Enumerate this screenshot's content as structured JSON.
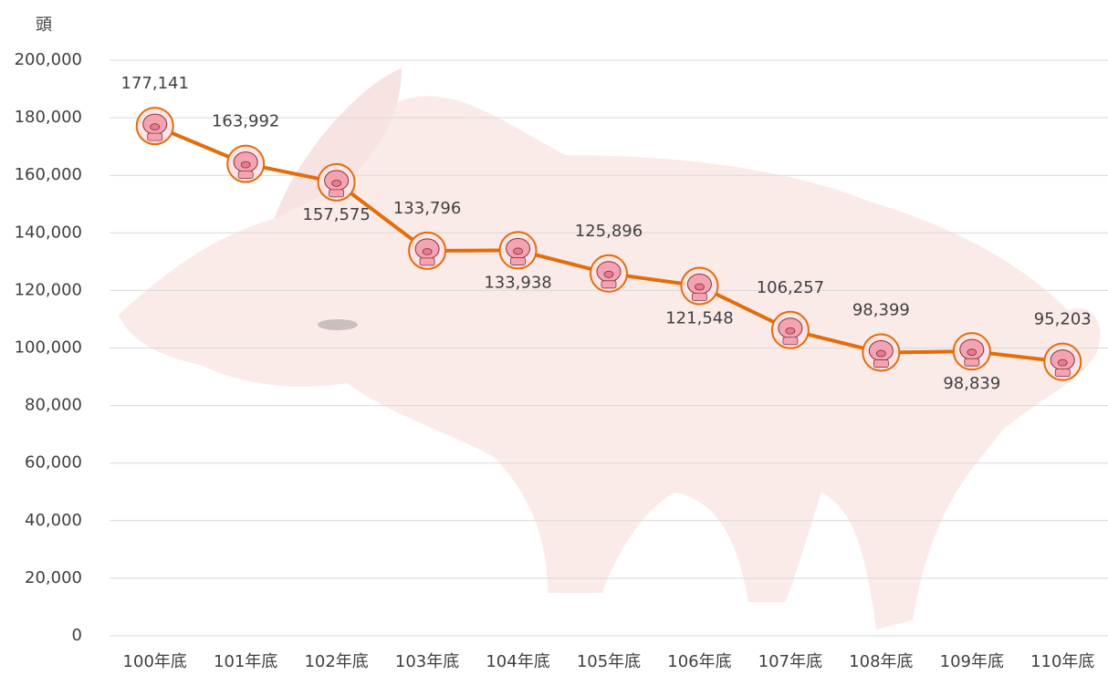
{
  "chart_data": {
    "type": "line",
    "y_axis_label": "頭",
    "categories": [
      "100年底",
      "101年底",
      "102年底",
      "103年底",
      "104年底",
      "105年底",
      "106年底",
      "107年底",
      "108年底",
      "109年底",
      "110年底"
    ],
    "series": [
      {
        "color": "#e46c0a",
        "values": [
          177141,
          163992,
          157575,
          133796,
          133938,
          125896,
          121548,
          106257,
          98399,
          98839,
          95203
        ],
        "value_labels": [
          "177,141",
          "163,992",
          "157,575",
          "133,796",
          "133,938",
          "125,896",
          "121,548",
          "106,257",
          "98,399",
          "98,839",
          "95,203"
        ]
      }
    ],
    "ylim": [
      0,
      200000
    ],
    "yticks": [
      0,
      {
        "value": 20000,
        "label": "20,000"
      },
      {
        "value": 40000,
        "label": "40,000"
      },
      {
        "value": 60000,
        "label": "60,000"
      },
      {
        "value": 80000,
        "label": "80,000"
      },
      {
        "value": 100000,
        "label": "100,000"
      },
      {
        "value": 120000,
        "label": "120,000"
      },
      {
        "value": 140000,
        "label": "140,000"
      },
      {
        "value": 160000,
        "label": "160,000"
      },
      {
        "value": 180000,
        "label": "180,000"
      },
      {
        "value": 200000,
        "label": "200,000"
      }
    ],
    "grid": true
  }
}
